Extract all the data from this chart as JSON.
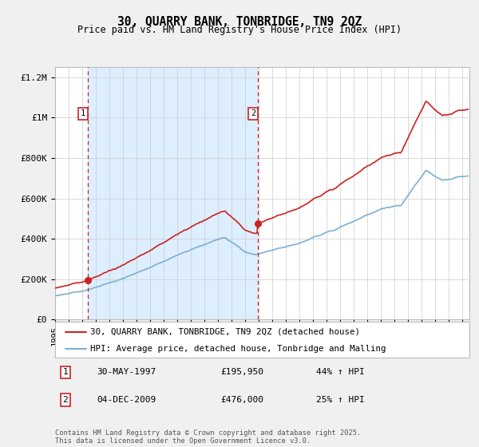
{
  "title": "30, QUARRY BANK, TONBRIDGE, TN9 2QZ",
  "subtitle": "Price paid vs. HM Land Registry's House Price Index (HPI)",
  "legend_line1": "30, QUARRY BANK, TONBRIDGE, TN9 2QZ (detached house)",
  "legend_line2": "HPI: Average price, detached house, Tonbridge and Malling",
  "sale1_date": "30-MAY-1997",
  "sale1_price": "£195,950",
  "sale1_hpi": "44% ↑ HPI",
  "sale1_year": 1997.41,
  "sale1_value": 195950,
  "sale2_date": "04-DEC-2009",
  "sale2_price": "£476,000",
  "sale2_hpi": "25% ↑ HPI",
  "sale2_year": 2009.92,
  "sale2_value": 476000,
  "hpi_color": "#7bafd4",
  "price_color": "#cc2222",
  "vline_color": "#cc2222",
  "bg_shaded_color": "#ddeeff",
  "background_color": "#f0f0f0",
  "plot_bg_color": "#ffffff",
  "grid_color": "#cccccc",
  "ylim": [
    0,
    1250000
  ],
  "xlim_start": 1995.0,
  "xlim_end": 2025.5,
  "yticks": [
    0,
    200000,
    400000,
    600000,
    800000,
    1000000,
    1200000
  ],
  "ylabel_texts": [
    "£0",
    "£200K",
    "£400K",
    "£600K",
    "£800K",
    "£1M",
    "£1.2M"
  ],
  "footer_text": "Contains HM Land Registry data © Crown copyright and database right 2025.\nThis data is licensed under the Open Government Licence v3.0."
}
